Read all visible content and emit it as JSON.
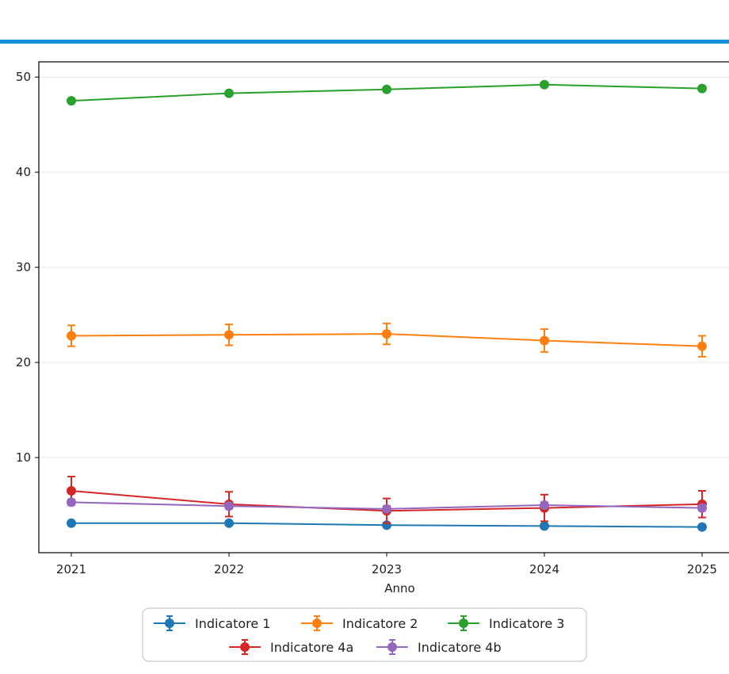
{
  "chart_data": {
    "type": "line",
    "x": [
      "2021",
      "2022",
      "2023",
      "2024",
      "2025"
    ],
    "xlabel": "Anno",
    "ylabel": "",
    "ylim": [
      0,
      51.6
    ],
    "yticks": [
      10,
      20,
      30,
      40,
      50
    ],
    "grid": "horizontal",
    "legend_position": "bottom-center",
    "series": [
      {
        "name": "Indicatore 1",
        "color": "#1f77b4",
        "values": [
          3.1,
          3.1,
          2.9,
          2.8,
          2.7
        ],
        "errors": [
          0.2,
          0.2,
          0.2,
          0.2,
          0.2
        ]
      },
      {
        "name": "Indicatore 2",
        "color": "#ff7f0e",
        "values": [
          22.8,
          22.9,
          23.0,
          22.3,
          21.7
        ],
        "errors": [
          1.1,
          1.1,
          1.1,
          1.2,
          1.1
        ]
      },
      {
        "name": "Indicatore 3",
        "color": "#2ca02c",
        "values": [
          47.5,
          48.3,
          48.7,
          49.2,
          48.8
        ],
        "errors": [
          0.2,
          0.2,
          0.2,
          0.2,
          0.2
        ]
      },
      {
        "name": "Indicatore 4a",
        "color": "#d62728",
        "values": [
          6.5,
          5.1,
          4.4,
          4.7,
          5.1
        ],
        "errors": [
          1.5,
          1.3,
          1.3,
          1.4,
          1.4
        ]
      },
      {
        "name": "Indicatore 4b",
        "color": "#9467bd",
        "values": [
          5.3,
          4.9,
          4.6,
          5.0,
          4.7
        ],
        "errors": [
          0.3,
          0.3,
          0.3,
          0.3,
          0.3
        ]
      }
    ]
  },
  "colors": {
    "accent_rule": "#0a91d6"
  }
}
